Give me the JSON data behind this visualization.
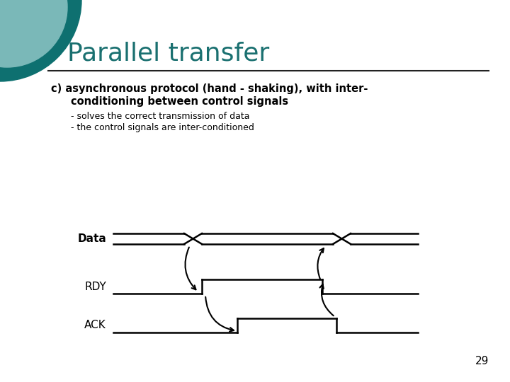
{
  "title": "Parallel transfer",
  "line1_bold": "c) asynchronous protocol (hand - shaking), with inter-",
  "line2_bold": "   conditioning between control signals",
  "bullet1": "- solves the correct transmission of data",
  "bullet2": "- the control signals are inter-conditioned",
  "page_number": "29",
  "bg_color": "#ffffff",
  "title_color": "#1a7070",
  "text_color": "#000000",
  "signal_color": "#000000",
  "teal_dark": "#0e7070",
  "teal_light": "#7ab8b8",
  "separator_color": "#222222"
}
